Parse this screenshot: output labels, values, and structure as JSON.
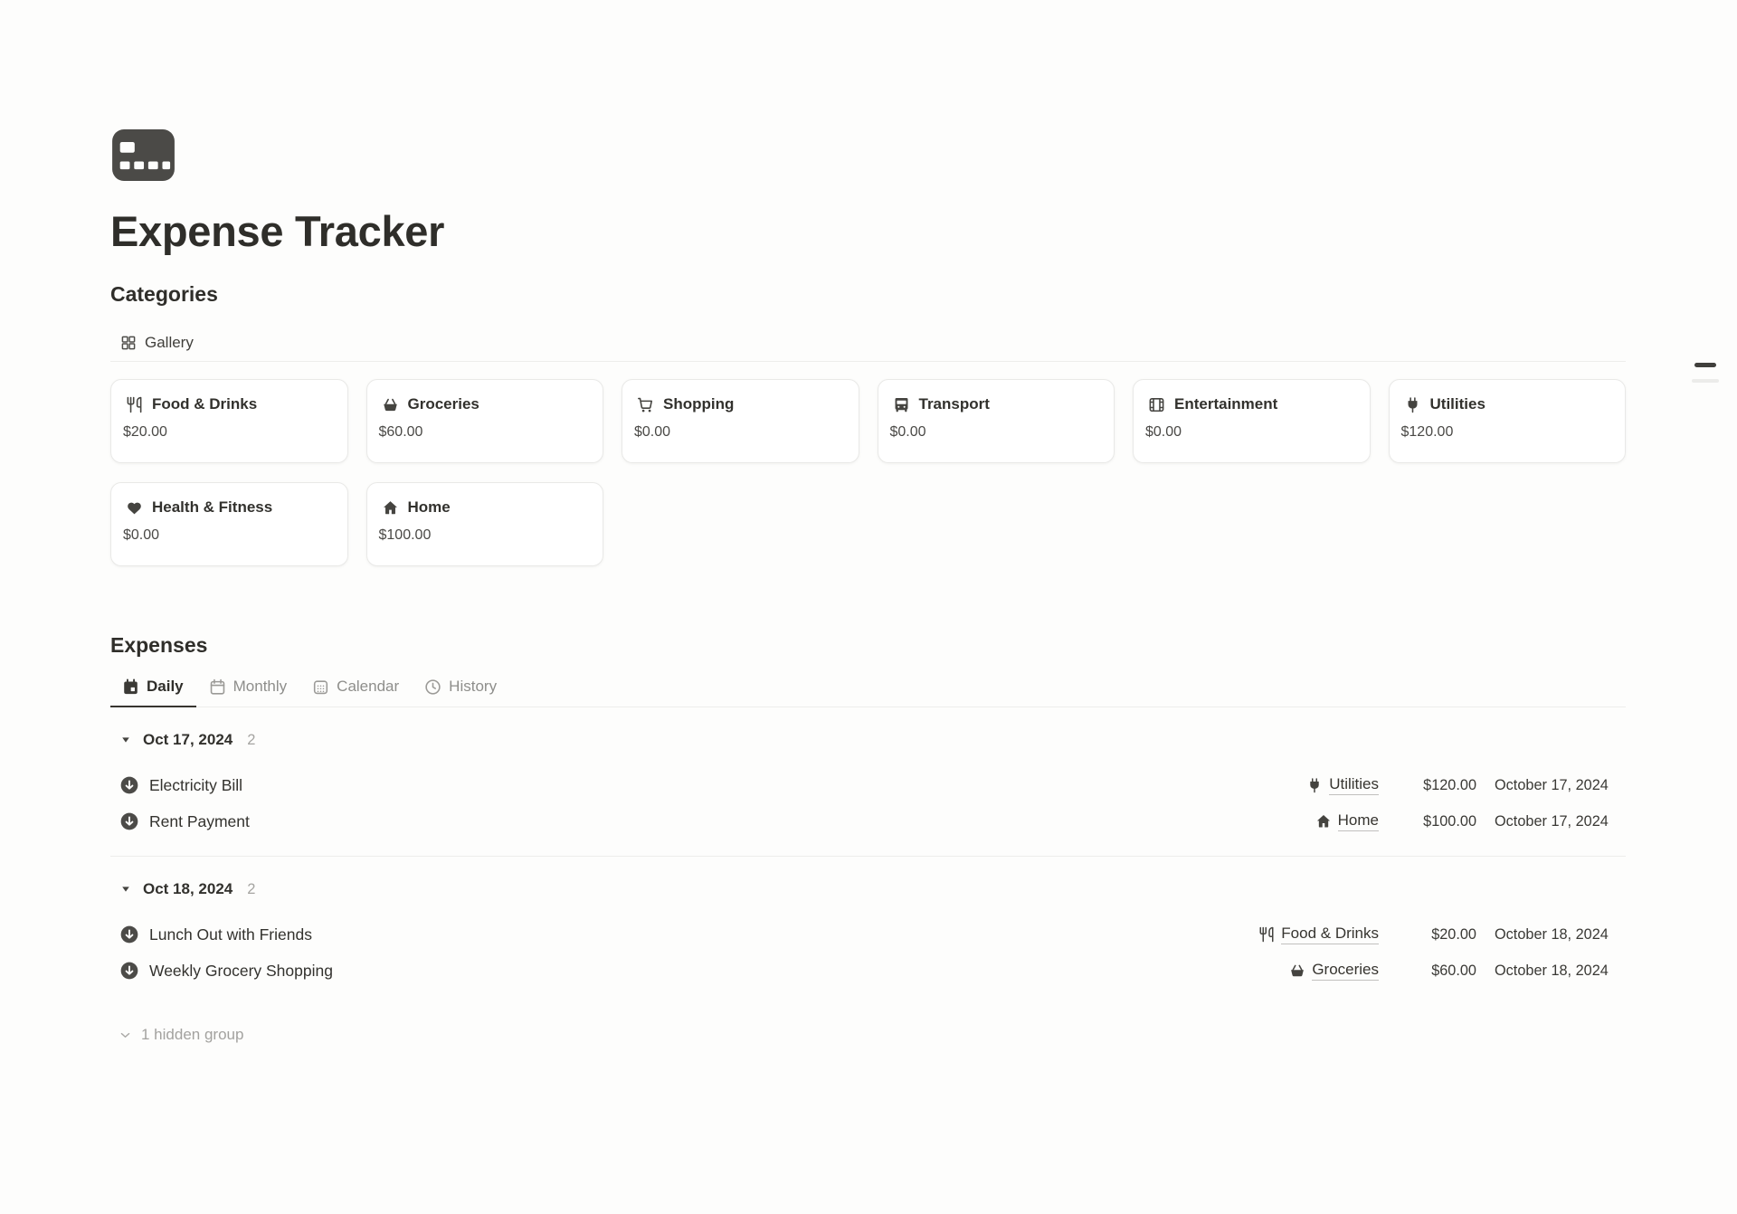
{
  "page": {
    "icon": "credit-card-icon",
    "title": "Expense Tracker"
  },
  "categories": {
    "heading": "Categories",
    "view": {
      "icon": "gallery-grid-icon",
      "label": "Gallery"
    },
    "cards": [
      {
        "icon": "utensils-icon",
        "name": "Food & Drinks",
        "amount": "$20.00"
      },
      {
        "icon": "basket-icon",
        "name": "Groceries",
        "amount": "$60.00"
      },
      {
        "icon": "cart-icon",
        "name": "Shopping",
        "amount": "$0.00"
      },
      {
        "icon": "bus-icon",
        "name": "Transport",
        "amount": "$0.00"
      },
      {
        "icon": "film-icon",
        "name": "Entertainment",
        "amount": "$0.00"
      },
      {
        "icon": "plug-icon",
        "name": "Utilities",
        "amount": "$120.00"
      },
      {
        "icon": "heart-icon",
        "name": "Health & Fitness",
        "amount": "$0.00"
      },
      {
        "icon": "home-icon",
        "name": "Home",
        "amount": "$100.00"
      }
    ]
  },
  "expenses": {
    "heading": "Expenses",
    "tabs": [
      {
        "icon": "calendar-filled-icon",
        "label": "Daily",
        "active": true
      },
      {
        "icon": "calendar-outline-icon",
        "label": "Monthly",
        "active": false
      },
      {
        "icon": "calendar-dots-icon",
        "label": "Calendar",
        "active": false
      },
      {
        "icon": "clock-icon",
        "label": "History",
        "active": false
      }
    ],
    "groups": [
      {
        "toggle_icon": "triangle-down-icon",
        "date": "Oct 17, 2024",
        "count": "2",
        "rows": [
          {
            "icon": "arrow-down-circle-icon",
            "title": "Electricity Bill",
            "category": {
              "icon": "plug-icon",
              "label": "Utilities"
            },
            "amount": "$120.00",
            "date": "October 17, 2024"
          },
          {
            "icon": "arrow-down-circle-icon",
            "title": "Rent Payment",
            "category": {
              "icon": "home-icon",
              "label": "Home"
            },
            "amount": "$100.00",
            "date": "October 17, 2024"
          }
        ]
      },
      {
        "toggle_icon": "triangle-down-icon",
        "date": "Oct 18, 2024",
        "count": "2",
        "rows": [
          {
            "icon": "arrow-down-circle-icon",
            "title": "Lunch Out with Friends",
            "category": {
              "icon": "utensils-icon",
              "label": "Food & Drinks"
            },
            "amount": "$20.00",
            "date": "October 18, 2024"
          },
          {
            "icon": "arrow-down-circle-icon",
            "title": "Weekly Grocery Shopping",
            "category": {
              "icon": "basket-icon",
              "label": "Groceries"
            },
            "amount": "$60.00",
            "date": "October 18, 2024"
          }
        ]
      }
    ],
    "hidden_groups": {
      "icon": "chevron-down-icon",
      "label": "1 hidden group"
    }
  },
  "colors": {
    "page_bg": "#fdfdfc",
    "text": "#37352f",
    "heading": "#2f2e2a",
    "muted": "#8e8e8b",
    "faint": "#a5a4a1",
    "divider": "#ededeb",
    "card_border": "#e9e9e7",
    "card_bg": "#ffffff",
    "icon_dark": "#4b4a47"
  }
}
